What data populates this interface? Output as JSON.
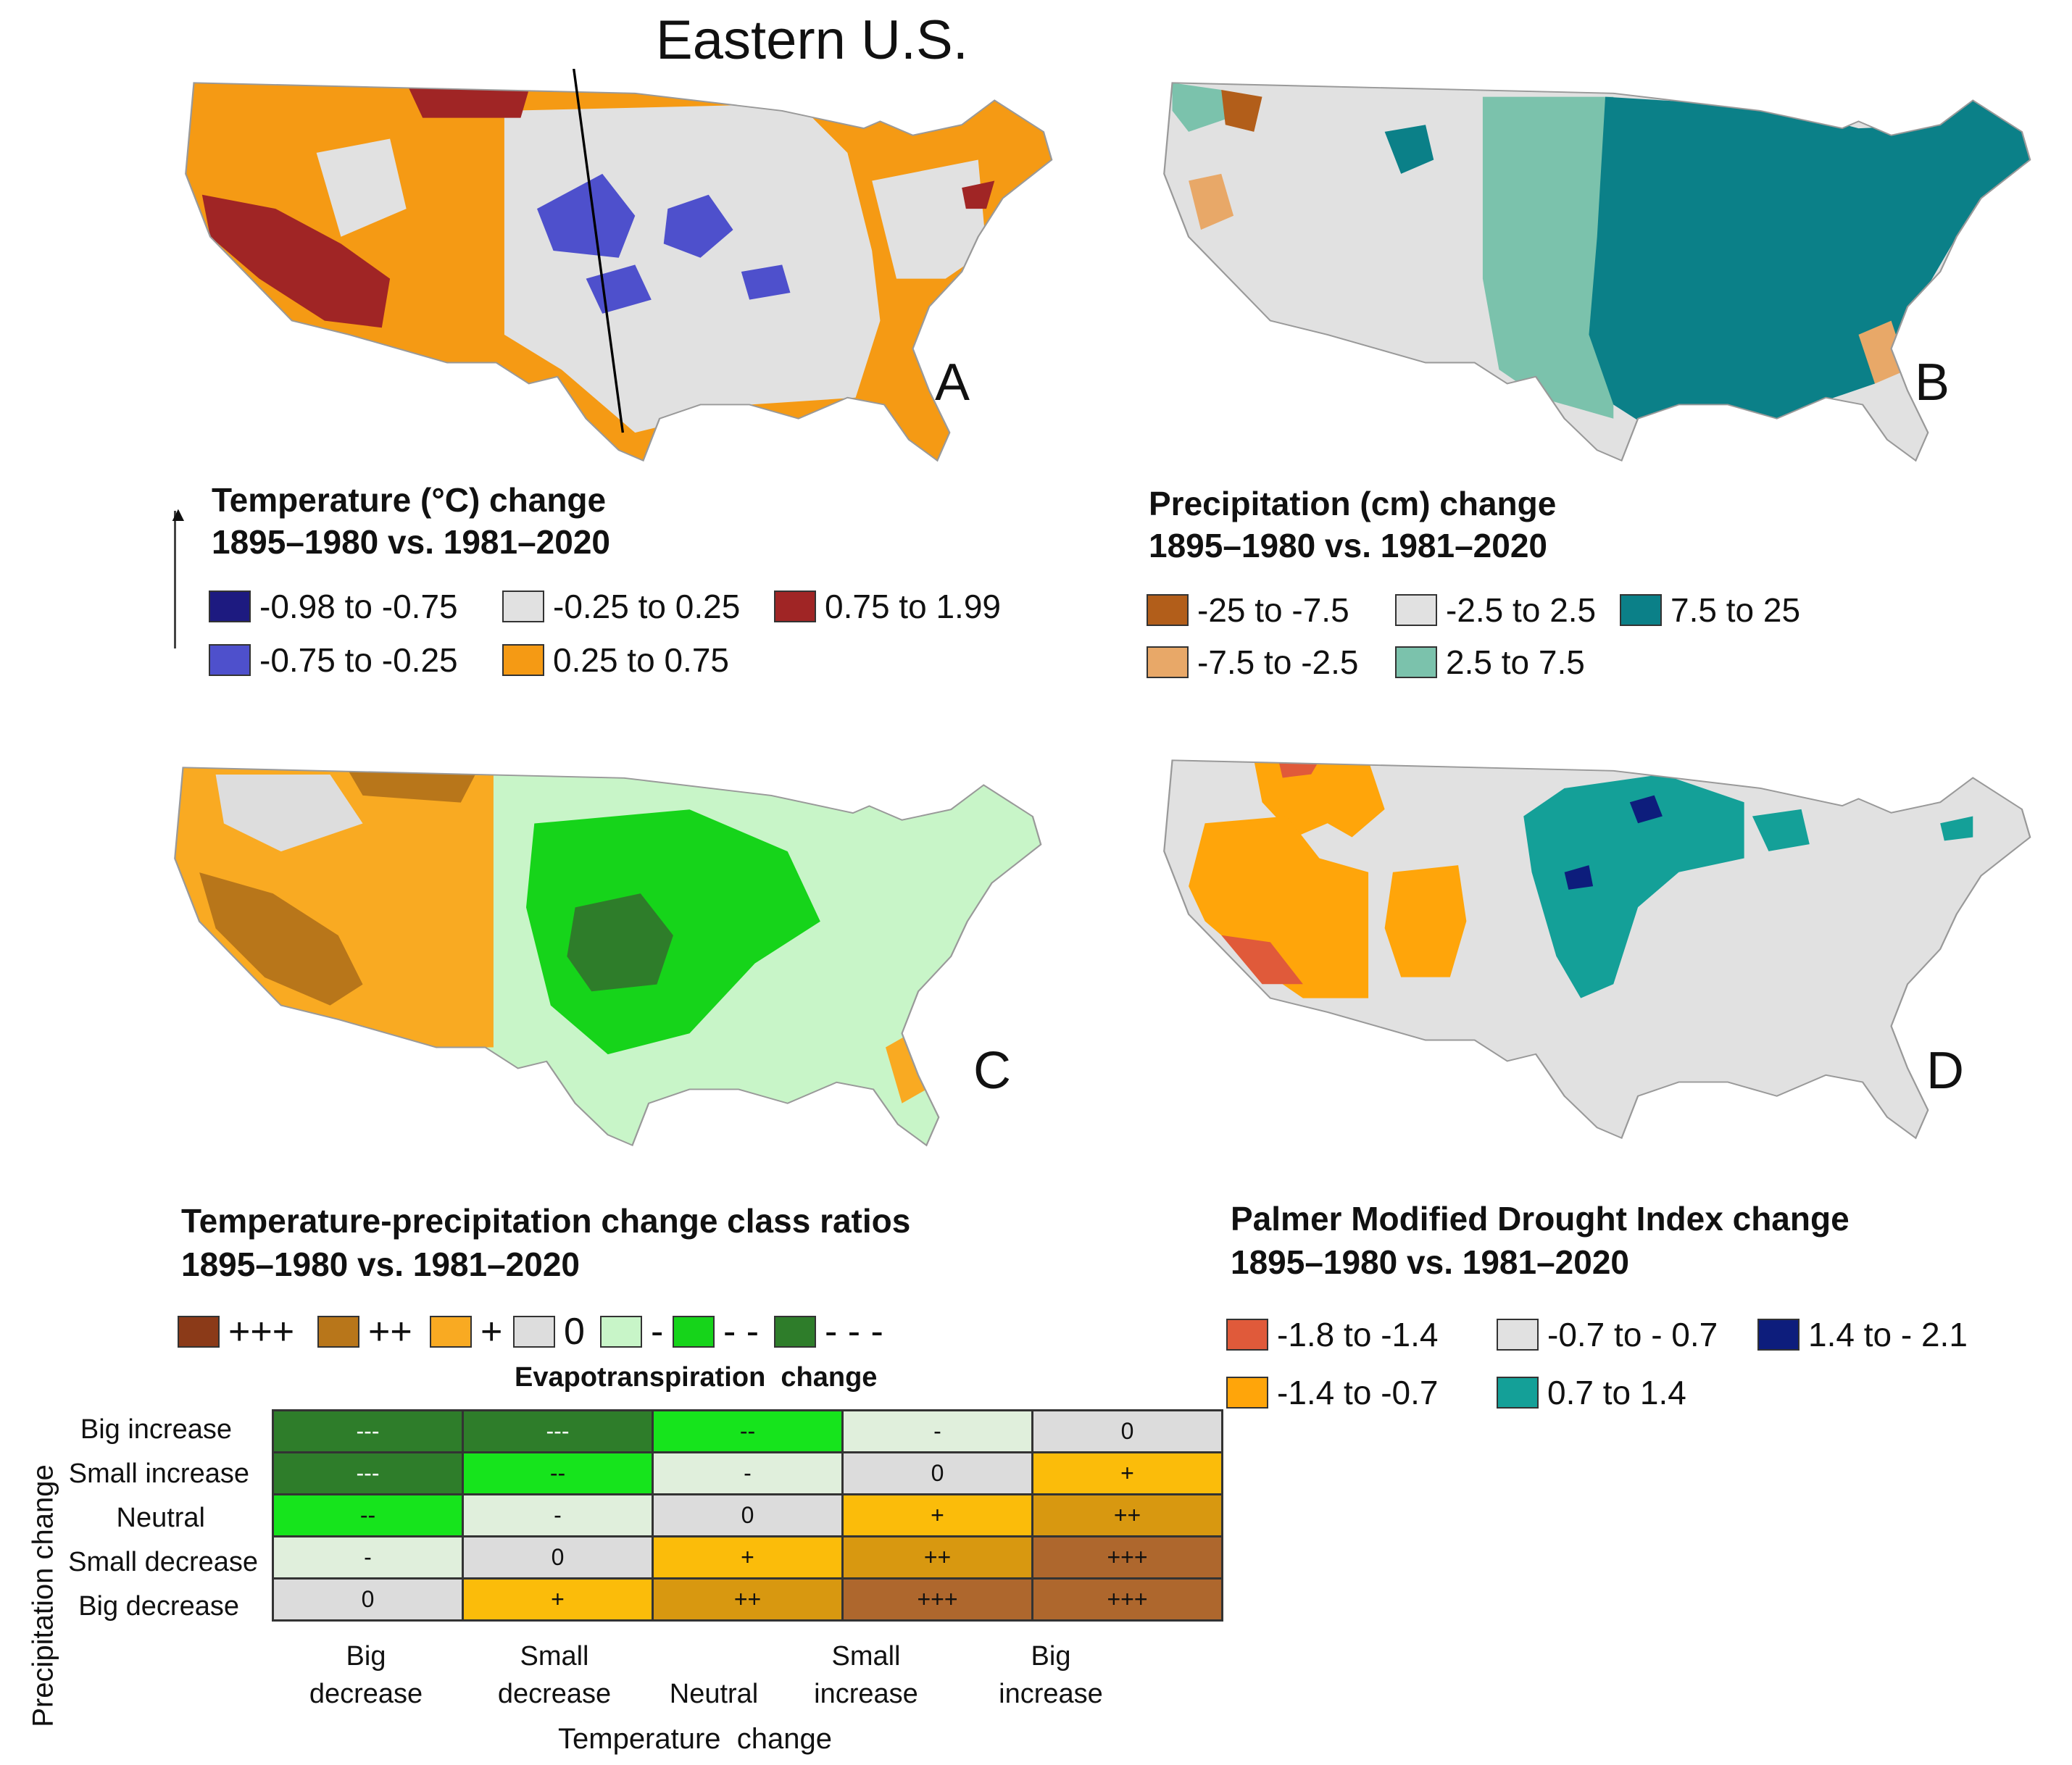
{
  "colors": {
    "temp": {
      "dark_blue": "#1d1a80",
      "light_gray": "#e1e1e1",
      "dark_red": "#a02525",
      "mid_blue": "#4e50cc",
      "orange": "#f59a14"
    },
    "precip": {
      "brown": "#b25e1a",
      "gray": "#e1e1e1",
      "teal": "#0b8088",
      "tan": "#e8a868",
      "light_teal": "#7bc2ac"
    },
    "ratio": {
      "ppp": "#8b3a18",
      "pp": "#b8761a",
      "p": "#f9aa22",
      "zero": "#dddddd",
      "m": "#c8f5c8",
      "mm": "#16d41a",
      "mmm": "#2e7d2a"
    },
    "matrix": {
      "dark_green": "#2e7d2a",
      "bright_green": "#16e41c",
      "pale_green": "#e0efdc",
      "gray": "#dcdcdc",
      "yellow": "#fbbc0a",
      "gold": "#d89810",
      "brown": "#ae672d"
    },
    "drought": {
      "red": "#e05a3a",
      "gray": "#e1e1e1",
      "navy": "#0d1d7c",
      "orange": "#ffa50a",
      "teal": "#14a098"
    },
    "outline": "#999999"
  },
  "panels": {
    "a": {
      "letter": "A",
      "annotation": "Eastern U.S."
    },
    "b": {
      "letter": "B"
    },
    "c": {
      "letter": "C"
    },
    "d": {
      "letter": "D"
    }
  },
  "legend_a": {
    "title1": "Temperature (°C) change",
    "title2": "1895–1980 vs. 1981–2020",
    "items": [
      "-0.98 to -0.75",
      "-0.25 to 0.25",
      "0.75 to 1.99",
      "-0.75 to -0.25",
      "0.25 to 0.75"
    ]
  },
  "legend_b": {
    "title1": "Precipitation (cm) change",
    "title2": "1895–1980 vs. 1981–2020",
    "items": [
      "-25 to -7.5",
      "-2.5 to 2.5",
      "7.5 to 25",
      "-7.5 to -2.5",
      "2.5 to 7.5"
    ]
  },
  "legend_c": {
    "title1": "Temperature-precipitation change class ratios",
    "title2": "1895–1980 vs. 1981–2020",
    "items": [
      "+++",
      "++",
      "+",
      "0",
      "-",
      "- -",
      "- - -"
    ]
  },
  "legend_d": {
    "title1": "Palmer Modified Drought Index change",
    "title2": "1895–1980 vs. 1981–2020",
    "items": [
      "-1.8 to -1.4",
      "-0.7 to - 0.7",
      "1.4 to - 2.1",
      "-1.4 to -0.7",
      "0.7 to 1.4"
    ]
  },
  "matrix": {
    "top_title": "Evapotranspiration  change",
    "y_title": "Precipitation change",
    "x_title": "Temperature  change",
    "row_labels": [
      "Big increase",
      "Small increase",
      "Neutral",
      "Small decrease",
      "Big decrease"
    ],
    "col_labels": [
      [
        "Big",
        "decrease"
      ],
      [
        "Small",
        "decrease"
      ],
      [
        "Neutral",
        ""
      ],
      [
        "Small",
        "increase"
      ],
      [
        "Big",
        "increase"
      ]
    ],
    "cells": [
      [
        "---",
        "---",
        "--",
        "-",
        "0"
      ],
      [
        "---",
        "--",
        "-",
        "0",
        "+"
      ],
      [
        "--",
        "-",
        "0",
        "+",
        "++"
      ],
      [
        "-",
        "0",
        "+",
        "++",
        "+++"
      ],
      [
        "0",
        "+",
        "++",
        "+++",
        "+++"
      ]
    ]
  }
}
